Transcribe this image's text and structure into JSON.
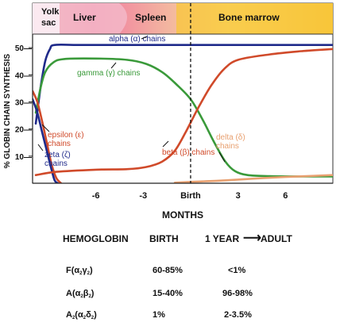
{
  "chart_data": {
    "type": "line",
    "ylabel": "% GLOBIN CHAIN SYNTHESIS",
    "xlabel": "MONTHS",
    "ylim": [
      0,
      55
    ],
    "yticks": [
      10,
      20,
      30,
      40,
      50
    ],
    "xticks": [
      {
        "t": -6,
        "label": "-6"
      },
      {
        "t": -3,
        "label": "-3"
      },
      {
        "t": 0,
        "label": "Birth"
      },
      {
        "t": 3,
        "label": "3"
      },
      {
        "t": 6,
        "label": "6"
      }
    ],
    "birth_marker": true,
    "regions": [
      {
        "label": "Yolk sac",
        "lines": [
          "Yolk",
          "sac"
        ]
      },
      {
        "label": "Liver"
      },
      {
        "label": "Spleen"
      },
      {
        "label": "Bone marrow"
      }
    ],
    "series": [
      {
        "name": "alpha (α) chains",
        "label_lines": [
          "alpha (α) chains"
        ],
        "color": "#1f2a8a",
        "points": [
          [
            -9.8,
            22
          ],
          [
            -9.5,
            35
          ],
          [
            -9.2,
            45
          ],
          [
            -8.9,
            49.5
          ],
          [
            -8.6,
            51
          ],
          [
            -7,
            51
          ],
          [
            -3,
            51
          ],
          [
            0,
            51
          ],
          [
            3,
            51
          ],
          [
            6,
            51
          ],
          [
            9,
            51
          ]
        ]
      },
      {
        "name": "gamma (γ) chains",
        "label_lines": [
          "gamma (γ) chains"
        ],
        "color": "#3a9a3a",
        "points": [
          [
            -9.8,
            26
          ],
          [
            -9.5,
            35
          ],
          [
            -9.2,
            41
          ],
          [
            -8.7,
            44.5
          ],
          [
            -8,
            45.8
          ],
          [
            -6,
            46
          ],
          [
            -4,
            45.5
          ],
          [
            -2.8,
            44
          ],
          [
            -1.8,
            41
          ],
          [
            -1,
            37
          ],
          [
            0,
            31
          ],
          [
            0.8,
            23
          ],
          [
            1.5,
            15
          ],
          [
            2.2,
            8
          ],
          [
            2.8,
            4.5
          ],
          [
            3.6,
            3
          ],
          [
            5,
            2.6
          ],
          [
            7,
            2.5
          ],
          [
            9,
            2.5
          ]
        ]
      },
      {
        "name": "epsilon (ε) chains",
        "label_lines": [
          "epsilon (ε)",
          "chains"
        ],
        "color": "#d04a2a",
        "points": [
          [
            -10,
            34
          ],
          [
            -9.7,
            30
          ],
          [
            -9.4,
            23
          ],
          [
            -9.1,
            15
          ],
          [
            -8.8,
            7
          ],
          [
            -8.5,
            2
          ],
          [
            -8.2,
            0
          ]
        ]
      },
      {
        "name": "zeta (ζ) chains",
        "label_lines": [
          "zeta (ζ)",
          "chains"
        ],
        "color": "#1f2a8a",
        "points": [
          [
            -10,
            31
          ],
          [
            -9.7,
            26
          ],
          [
            -9.4,
            19
          ],
          [
            -9.1,
            12
          ],
          [
            -8.8,
            5
          ],
          [
            -8.6,
            1
          ],
          [
            -8.4,
            0
          ]
        ]
      },
      {
        "name": "beta (β) chains",
        "label_lines": [
          "beta (β) chains"
        ],
        "color": "#d04a2a",
        "points": [
          [
            -9.8,
            3
          ],
          [
            -8.5,
            4.2
          ],
          [
            -6,
            5
          ],
          [
            -4,
            5.2
          ],
          [
            -2.8,
            6
          ],
          [
            -1.8,
            8
          ],
          [
            -1,
            12
          ],
          [
            -0.3,
            19
          ],
          [
            0.5,
            28
          ],
          [
            1.3,
            36
          ],
          [
            2.1,
            42
          ],
          [
            3,
            45.5
          ],
          [
            5,
            47.5
          ],
          [
            7,
            48.7
          ],
          [
            9,
            49.5
          ]
        ]
      },
      {
        "name": "delta (δ) chains",
        "label_lines": [
          "delta (δ)",
          "chains"
        ],
        "color": "#e8a070",
        "points": [
          [
            -1,
            0.2
          ],
          [
            0,
            0.5
          ],
          [
            2,
            1
          ],
          [
            4,
            1.7
          ],
          [
            6,
            2.3
          ],
          [
            9,
            3
          ]
        ]
      }
    ]
  },
  "table": {
    "headers": [
      "HEMOGLOBIN",
      "BIRTH",
      "1 YEAR",
      "ADULT"
    ],
    "rows": [
      {
        "name": "F",
        "chains": [
          [
            "α",
            "2"
          ],
          [
            "γ",
            "2"
          ]
        ],
        "birth": "60-85%",
        "adult": "<1%"
      },
      {
        "name": "A",
        "chains": [
          [
            "α",
            "2"
          ],
          [
            "β",
            "2"
          ]
        ],
        "birth": "15-40%",
        "adult": "96-98%"
      },
      {
        "name": "A",
        "name_sub": "2",
        "chains": [
          [
            "α",
            "2"
          ],
          [
            "δ",
            "2"
          ]
        ],
        "birth": "1%",
        "adult": "2-3.5%"
      }
    ]
  }
}
